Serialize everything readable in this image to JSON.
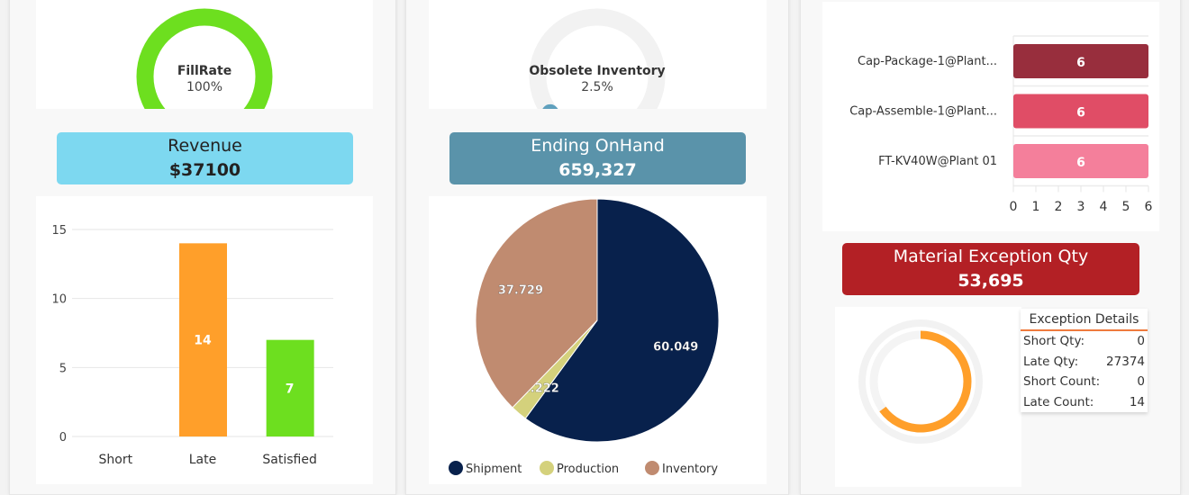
{
  "fillrate": {
    "label": "FillRate",
    "value": "100%",
    "fraction": 1.0,
    "color": "#6ddf1f"
  },
  "revenue": {
    "title": "Revenue",
    "value": "$37100",
    "color": "#7dd8f0"
  },
  "status_chart": {
    "type": "bar",
    "categories": [
      "Short",
      "Late",
      "Satisfied"
    ],
    "values": [
      0,
      14,
      7
    ],
    "value_labels": [
      "",
      "14",
      "7"
    ],
    "colors": [
      "#ff9f2a",
      "#ff9f2a",
      "#6ddf1f"
    ],
    "ylim": [
      0,
      15
    ],
    "yticks": [
      "0",
      "5",
      "10",
      "15"
    ]
  },
  "obsolete": {
    "label": "Obsolete Inventory",
    "value": "2.5%",
    "fraction": 0.025,
    "color": "#5fa0bd"
  },
  "ending_onhand": {
    "title": "Ending OnHand",
    "value": "659,327",
    "color": "#5a93aa"
  },
  "chart_data": {
    "type": "pie",
    "labels": [
      "Shipment",
      "Production",
      "Inventory"
    ],
    "values": [
      60.049,
      2.222,
      37.729
    ],
    "value_labels": [
      "60.049",
      "2.222",
      "37.729"
    ],
    "colors": [
      "#08214c",
      "#d4d17c",
      "#c08b70"
    ]
  },
  "resource_chart": {
    "type": "bar",
    "orientation": "horizontal",
    "categories": [
      "Cap-Package-1@Plant...",
      "Cap-Assemble-1@Plant...",
      "FT-KV40W@Plant 01"
    ],
    "values": [
      6,
      6,
      6
    ],
    "value_labels": [
      "6",
      "6",
      "6"
    ],
    "colors": [
      "#982e3d",
      "#e04d66",
      "#f47f9b"
    ],
    "xlim": [
      0,
      6
    ],
    "xticks": [
      "0",
      "1",
      "2",
      "3",
      "4",
      "5",
      "6"
    ]
  },
  "material_exception": {
    "title": "Material Exception Qty",
    "value": "53,695",
    "color": "#b32025",
    "ring_fraction": 0.65,
    "ring_color": "#ff9f2a"
  },
  "exception_details": {
    "title": "Exception Details",
    "rows": [
      {
        "label": "Short Qty:",
        "value": "0"
      },
      {
        "label": "Late Qty:",
        "value": "27374"
      },
      {
        "label": "Short Count:",
        "value": "0"
      },
      {
        "label": "Late Count:",
        "value": "14"
      }
    ]
  }
}
